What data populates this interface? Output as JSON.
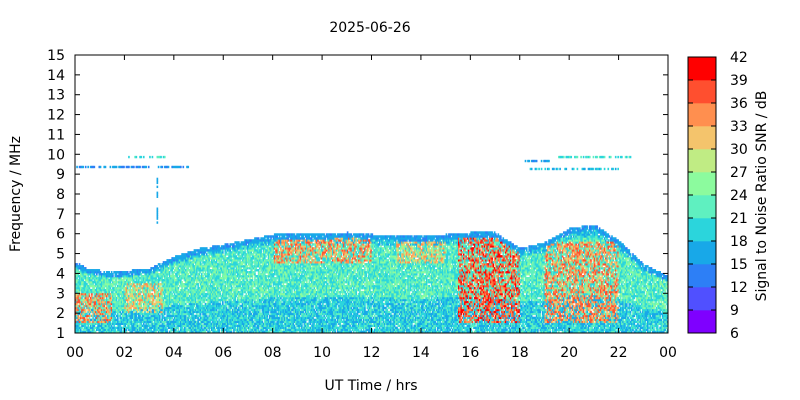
{
  "chart_data": {
    "type": "heatmap",
    "title": "2025-06-26",
    "xlabel": "UT Time / hrs",
    "ylabel": "Frequency / MHz",
    "colorbar_label": "Signal to Noise Ratio SNR / dB",
    "xlim": [
      0,
      24
    ],
    "ylim": [
      1,
      15
    ],
    "x_ticks": [
      "00",
      "02",
      "04",
      "06",
      "08",
      "10",
      "12",
      "14",
      "16",
      "18",
      "20",
      "22",
      "00"
    ],
    "y_ticks": [
      "1",
      "2",
      "3",
      "4",
      "5",
      "6",
      "7",
      "8",
      "9",
      "10",
      "11",
      "12",
      "13",
      "14",
      "15"
    ],
    "colorbar_ticks": [
      "6",
      "9",
      "12",
      "15",
      "18",
      "21",
      "24",
      "27",
      "30",
      "33",
      "36",
      "39",
      "42"
    ],
    "colorbar_range": [
      6,
      42
    ],
    "colorbar_colors": [
      "#7f00ff",
      "#5050ff",
      "#2d7ff6",
      "#18a8e8",
      "#2bd5dc",
      "#5ff0c0",
      "#8cfb9e",
      "#c0ec84",
      "#f4c46c",
      "#ff8f4f",
      "#ff4f2f",
      "#ff0000"
    ],
    "grid": false,
    "upper_envelope": [
      {
        "hour": 0,
        "mhz": 4.5
      },
      {
        "hour": 0.5,
        "mhz": 4.2
      },
      {
        "hour": 1.5,
        "mhz": 4.0
      },
      {
        "hour": 3,
        "mhz": 4.2
      },
      {
        "hour": 4,
        "mhz": 4.8
      },
      {
        "hour": 5,
        "mhz": 5.2
      },
      {
        "hour": 6,
        "mhz": 5.4
      },
      {
        "hour": 8,
        "mhz": 5.9
      },
      {
        "hour": 10,
        "mhz": 5.9
      },
      {
        "hour": 11,
        "mhz": 6.0
      },
      {
        "hour": 12,
        "mhz": 5.9
      },
      {
        "hour": 14,
        "mhz": 5.8
      },
      {
        "hour": 16,
        "mhz": 6.0
      },
      {
        "hour": 17,
        "mhz": 6.0
      },
      {
        "hour": 18,
        "mhz": 5.2
      },
      {
        "hour": 19,
        "mhz": 5.5
      },
      {
        "hour": 20,
        "mhz": 6.2
      },
      {
        "hour": 21,
        "mhz": 6.4
      },
      {
        "hour": 22,
        "mhz": 5.6
      },
      {
        "hour": 23,
        "mhz": 4.4
      },
      {
        "hour": 24,
        "mhz": 3.8
      }
    ],
    "high_snr_regions": [
      {
        "hours": [
          0,
          1.5
        ],
        "mhz": [
          1.5,
          3.0
        ],
        "snr": 36
      },
      {
        "hours": [
          2,
          3.5
        ],
        "mhz": [
          2.0,
          3.5
        ],
        "snr": 33
      },
      {
        "hours": [
          8,
          12
        ],
        "mhz": [
          4.5,
          5.8
        ],
        "snr": 36
      },
      {
        "hours": [
          13,
          15
        ],
        "mhz": [
          4.5,
          5.5
        ],
        "snr": 33
      },
      {
        "hours": [
          15.5,
          18
        ],
        "mhz": [
          1.5,
          5.8
        ],
        "snr": 39
      },
      {
        "hours": [
          19,
          22
        ],
        "mhz": [
          1.5,
          5.5
        ],
        "snr": 36
      }
    ],
    "sporadic_traces": [
      {
        "hours": [
          0,
          4.6
        ],
        "mhz": 9.3,
        "snr": 15
      },
      {
        "hours": [
          2.1,
          3.6
        ],
        "mhz": 9.8,
        "snr": 21
      },
      {
        "hours": [
          18.2,
          19.2
        ],
        "mhz": 9.6,
        "snr": 15
      },
      {
        "hours": [
          19.5,
          22.5
        ],
        "mhz": 9.8,
        "snr": 21
      },
      {
        "hours": [
          18.4,
          22.0
        ],
        "mhz": 9.2,
        "snr": 18
      },
      {
        "hours": [
          3.3,
          3.4
        ],
        "mhz": [
          6.5,
          9.0
        ],
        "snr": 15
      }
    ]
  }
}
